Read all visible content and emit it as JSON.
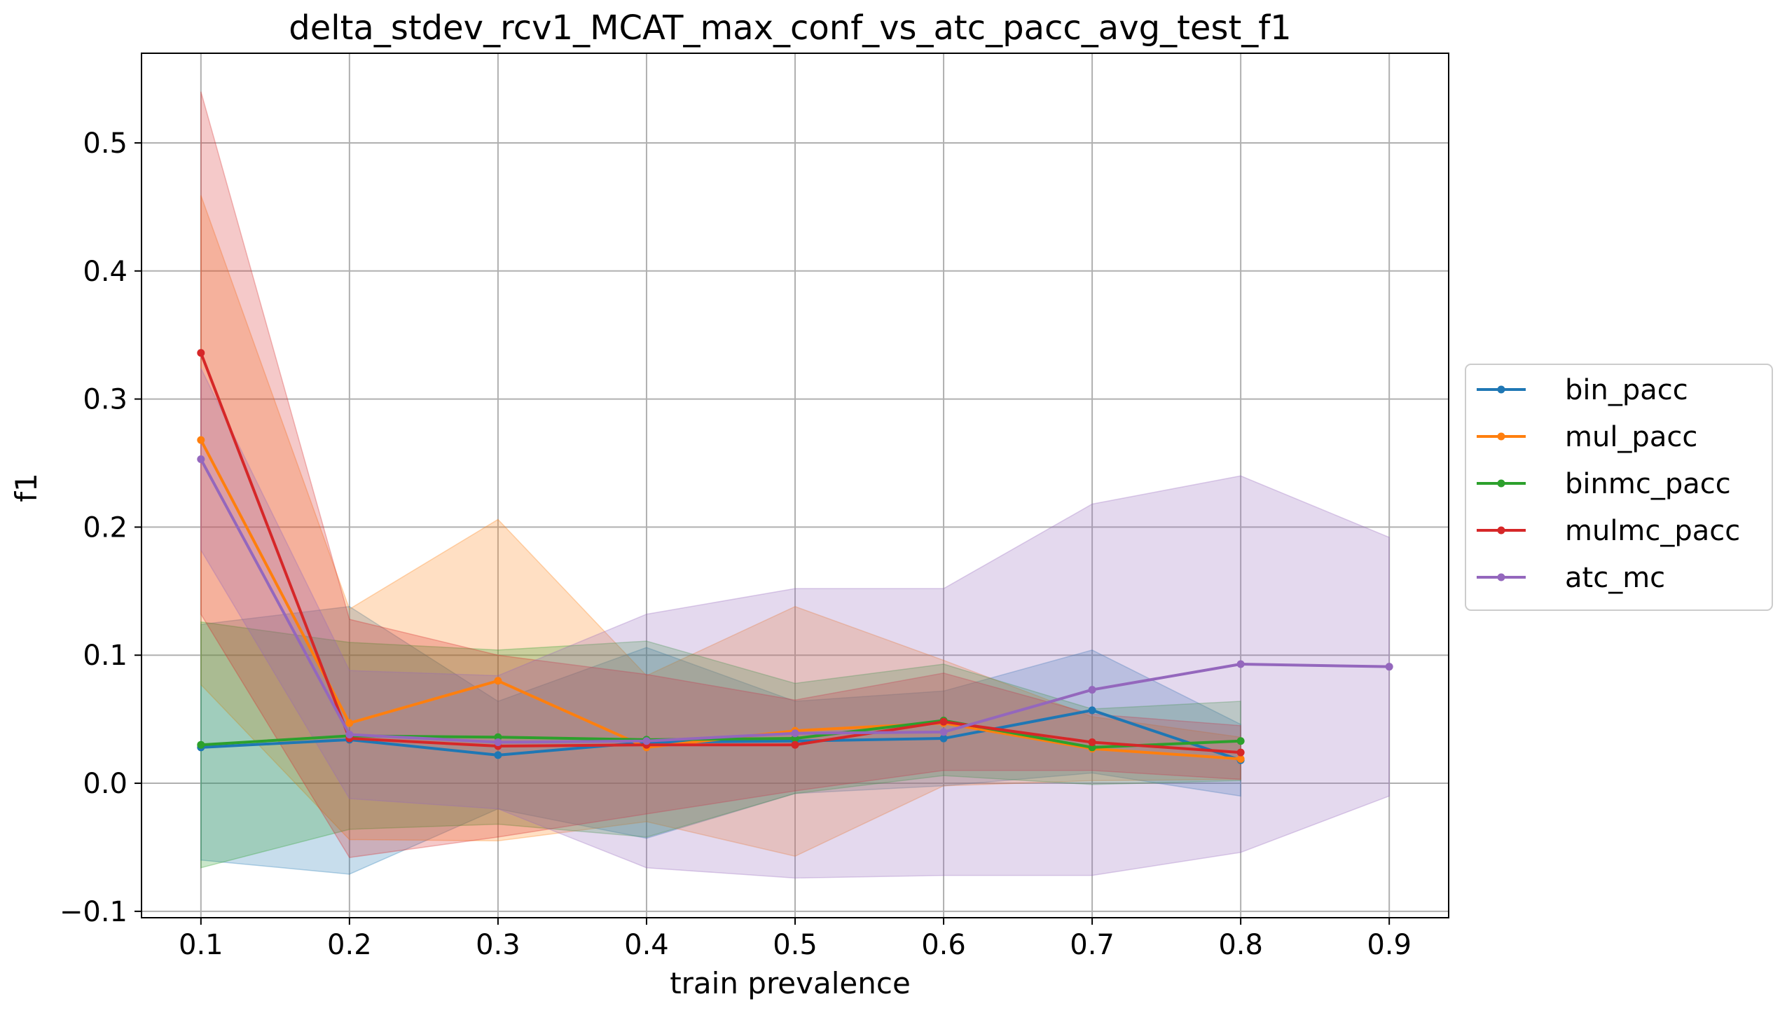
{
  "chart_data": {
    "type": "line",
    "title": "delta_stdev_rcv1_MCAT_max_conf_vs_atc_pacc_avg_test_f1",
    "xlabel": "train prevalence",
    "ylabel": "f1",
    "xlim": [
      0.06,
      0.94
    ],
    "ylim": [
      -0.105,
      0.57
    ],
    "xticks": [
      0.1,
      0.2,
      0.3,
      0.4,
      0.5,
      0.6,
      0.7,
      0.8,
      0.9
    ],
    "xtick_labels": [
      "0.1",
      "0.2",
      "0.3",
      "0.4",
      "0.5",
      "0.6",
      "0.7",
      "0.8",
      "0.9"
    ],
    "yticks": [
      -0.1,
      0.0,
      0.1,
      0.2,
      0.3,
      0.4,
      0.5
    ],
    "ytick_labels": [
      "−0.1",
      "0.0",
      "0.1",
      "0.2",
      "0.3",
      "0.4",
      "0.5"
    ],
    "grid": true,
    "legend_position": "right-outside",
    "series": [
      {
        "name": "bin_pacc",
        "color": "#1f77b4",
        "x": [
          0.1,
          0.2,
          0.3,
          0.4,
          0.5,
          0.6,
          0.7,
          0.8
        ],
        "y": [
          0.028,
          0.034,
          0.022,
          0.032,
          0.033,
          0.035,
          0.057,
          0.018
        ],
        "lower": [
          -0.06,
          -0.071,
          -0.02,
          -0.043,
          -0.008,
          -0.002,
          0.008,
          -0.01
        ],
        "upper": [
          0.124,
          0.138,
          0.064,
          0.106,
          0.064,
          0.072,
          0.104,
          0.046
        ]
      },
      {
        "name": "mul_pacc",
        "color": "#ff7f0e",
        "x": [
          0.1,
          0.2,
          0.3,
          0.4,
          0.5,
          0.6,
          0.7,
          0.8
        ],
        "y": [
          0.268,
          0.047,
          0.08,
          0.028,
          0.041,
          0.047,
          0.027,
          0.019
        ],
        "lower": [
          0.077,
          -0.044,
          -0.045,
          -0.03,
          -0.057,
          -0.002,
          0.002,
          0.003
        ],
        "upper": [
          0.459,
          0.136,
          0.206,
          0.084,
          0.138,
          0.096,
          0.052,
          0.036
        ]
      },
      {
        "name": "binmc_pacc",
        "color": "#2ca02c",
        "x": [
          0.1,
          0.2,
          0.3,
          0.4,
          0.5,
          0.6,
          0.7,
          0.8
        ],
        "y": [
          0.03,
          0.037,
          0.036,
          0.034,
          0.035,
          0.049,
          0.028,
          0.033
        ],
        "lower": [
          -0.066,
          -0.036,
          -0.032,
          -0.042,
          -0.008,
          0.006,
          -0.001,
          0.002
        ],
        "upper": [
          0.126,
          0.11,
          0.104,
          0.111,
          0.078,
          0.093,
          0.058,
          0.064
        ]
      },
      {
        "name": "mulmc_pacc",
        "color": "#d62728",
        "x": [
          0.1,
          0.2,
          0.3,
          0.4,
          0.5,
          0.6,
          0.7,
          0.8
        ],
        "y": [
          0.336,
          0.035,
          0.029,
          0.03,
          0.03,
          0.048,
          0.032,
          0.024
        ],
        "lower": [
          0.132,
          -0.058,
          -0.042,
          -0.024,
          -0.006,
          0.01,
          0.01,
          0.003
        ],
        "upper": [
          0.54,
          0.128,
          0.1,
          0.085,
          0.065,
          0.086,
          0.054,
          0.045
        ]
      },
      {
        "name": "atc_mc",
        "color": "#9467bd",
        "x": [
          0.1,
          0.2,
          0.3,
          0.4,
          0.5,
          0.6,
          0.7,
          0.8,
          0.9
        ],
        "y": [
          0.253,
          0.038,
          0.032,
          0.033,
          0.039,
          0.04,
          0.073,
          0.093,
          0.091
        ],
        "lower": [
          0.182,
          -0.012,
          -0.02,
          -0.066,
          -0.074,
          -0.072,
          -0.072,
          -0.054,
          -0.01
        ],
        "upper": [
          0.324,
          0.088,
          0.084,
          0.132,
          0.152,
          0.152,
          0.218,
          0.24,
          0.192
        ]
      }
    ]
  }
}
